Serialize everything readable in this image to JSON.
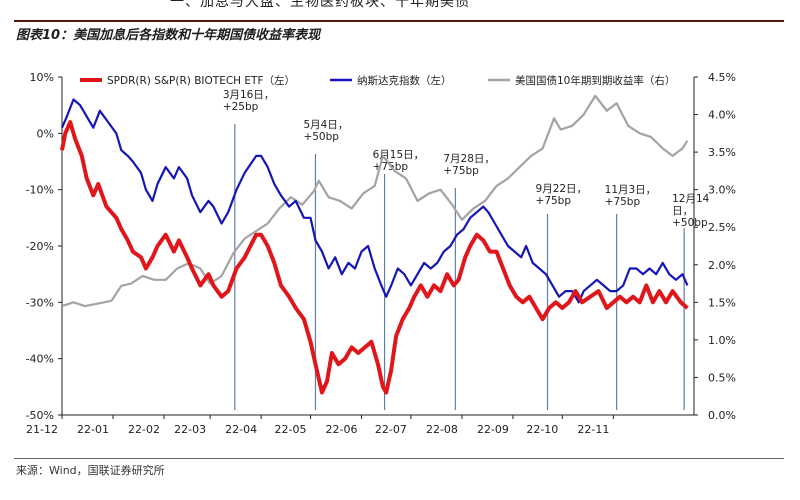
{
  "header": {
    "top_sliver_text": "一、加息与大盘、生物医药板块、十年期美债",
    "figure_title": "图表10：美国加息后各指数和十年期国债收益率表现"
  },
  "footer": {
    "source": "来源：Wind，国联证券研究所"
  },
  "colors": {
    "spdr": "#e0161b",
    "nasdaq": "#1515b8",
    "treasury": "#a3a3a3",
    "event_line": "#5f7fa6",
    "title_rule": "#5a1a12"
  },
  "chart_data": {
    "type": "line",
    "x_ticks": [
      "21-12",
      "22-01",
      "22-02",
      "22-03",
      "22-04",
      "22-05",
      "22-06",
      "22-07",
      "22-08",
      "22-09",
      "22-10",
      "22-11"
    ],
    "x_range": [
      "2021-12-01",
      "2022-12-20"
    ],
    "y_left": {
      "ticks": [
        "10%",
        "0%",
        "-10%",
        "-20%",
        "-30%",
        "-40%",
        "-50%"
      ],
      "range": [
        -50,
        10
      ],
      "unit": "%"
    },
    "y_right": {
      "ticks": [
        "4.5%",
        "4.0%",
        "3.5%",
        "3.0%",
        "2.5%",
        "2.0%",
        "1.5%",
        "1.0%",
        "0.5%",
        "0.0%"
      ],
      "range": [
        0,
        4.5
      ],
      "unit": "%"
    },
    "legend_position": "top",
    "series": [
      {
        "name": "SPDR(R) S&P(R) BIOTECH ETF（左）",
        "axis": "left",
        "color_key": "spdr",
        "points": [
          [
            "2021-12-01",
            -3
          ],
          [
            "2021-12-03",
            0
          ],
          [
            "2021-12-06",
            2
          ],
          [
            "2021-12-09",
            -1
          ],
          [
            "2021-12-13",
            -4
          ],
          [
            "2021-12-16",
            -8
          ],
          [
            "2021-12-20",
            -11
          ],
          [
            "2021-12-23",
            -9
          ],
          [
            "2021-12-28",
            -13
          ],
          [
            "2022-01-03",
            -15
          ],
          [
            "2022-01-06",
            -17
          ],
          [
            "2022-01-10",
            -19
          ],
          [
            "2022-01-13",
            -21
          ],
          [
            "2022-01-18",
            -22
          ],
          [
            "2022-01-21",
            -24
          ],
          [
            "2022-01-25",
            -22
          ],
          [
            "2022-01-28",
            -20
          ],
          [
            "2022-02-02",
            -18
          ],
          [
            "2022-02-07",
            -21
          ],
          [
            "2022-02-10",
            -19
          ],
          [
            "2022-02-15",
            -22
          ],
          [
            "2022-02-18",
            -24
          ],
          [
            "2022-02-23",
            -27
          ],
          [
            "2022-02-28",
            -25
          ],
          [
            "2022-03-03",
            -27
          ],
          [
            "2022-03-08",
            -29
          ],
          [
            "2022-03-12",
            -28
          ],
          [
            "2022-03-17",
            -24
          ],
          [
            "2022-03-22",
            -22
          ],
          [
            "2022-03-29",
            -18
          ],
          [
            "2022-04-01",
            -18
          ],
          [
            "2022-04-05",
            -20
          ],
          [
            "2022-04-09",
            -23
          ],
          [
            "2022-04-13",
            -27
          ],
          [
            "2022-04-18",
            -29
          ],
          [
            "2022-04-22",
            -31
          ],
          [
            "2022-04-27",
            -33
          ],
          [
            "2022-05-01",
            -37
          ],
          [
            "2022-05-04",
            -41
          ],
          [
            "2022-05-08",
            -46
          ],
          [
            "2022-05-11",
            -44
          ],
          [
            "2022-05-14",
            -39
          ],
          [
            "2022-05-18",
            -41
          ],
          [
            "2022-05-22",
            -40
          ],
          [
            "2022-05-26",
            -38
          ],
          [
            "2022-05-30",
            -39
          ],
          [
            "2022-06-03",
            -38
          ],
          [
            "2022-06-07",
            -37
          ],
          [
            "2022-06-11",
            -41
          ],
          [
            "2022-06-14",
            -45
          ],
          [
            "2022-06-16",
            -46
          ],
          [
            "2022-06-19",
            -42
          ],
          [
            "2022-06-22",
            -36
          ],
          [
            "2022-06-26",
            -33
          ],
          [
            "2022-06-30",
            -31
          ],
          [
            "2022-07-03",
            -29
          ],
          [
            "2022-07-07",
            -27
          ],
          [
            "2022-07-11",
            -29
          ],
          [
            "2022-07-15",
            -27
          ],
          [
            "2022-07-19",
            -28
          ],
          [
            "2022-07-23",
            -25
          ],
          [
            "2022-07-27",
            -27
          ],
          [
            "2022-07-30",
            -26
          ],
          [
            "2022-08-03",
            -22
          ],
          [
            "2022-08-06",
            -20
          ],
          [
            "2022-08-10",
            -18
          ],
          [
            "2022-08-14",
            -19
          ],
          [
            "2022-08-18",
            -21
          ],
          [
            "2022-08-22",
            -21
          ],
          [
            "2022-08-26",
            -24
          ],
          [
            "2022-08-30",
            -27
          ],
          [
            "2022-09-03",
            -29
          ],
          [
            "2022-09-07",
            -30
          ],
          [
            "2022-09-11",
            -29
          ],
          [
            "2022-09-15",
            -31
          ],
          [
            "2022-09-19",
            -33
          ],
          [
            "2022-09-23",
            -31
          ],
          [
            "2022-09-27",
            -30
          ],
          [
            "2022-10-01",
            -31
          ],
          [
            "2022-10-05",
            -30
          ],
          [
            "2022-10-09",
            -28
          ],
          [
            "2022-10-13",
            -30
          ],
          [
            "2022-10-18",
            -29
          ],
          [
            "2022-10-23",
            -28
          ],
          [
            "2022-10-28",
            -31
          ],
          [
            "2022-11-01",
            -30
          ],
          [
            "2022-11-05",
            -29
          ],
          [
            "2022-11-09",
            -30
          ],
          [
            "2022-11-13",
            -29
          ],
          [
            "2022-11-17",
            -30
          ],
          [
            "2022-11-21",
            -27
          ],
          [
            "2022-11-25",
            -30
          ],
          [
            "2022-11-29",
            -28
          ],
          [
            "2022-12-03",
            -30
          ],
          [
            "2022-12-07",
            -28
          ],
          [
            "2022-12-12",
            -30
          ],
          [
            "2022-12-16",
            -31
          ]
        ]
      },
      {
        "name": "纳斯达克指数（左）",
        "axis": "left",
        "color_key": "nasdaq",
        "points": [
          [
            "2021-12-01",
            1
          ],
          [
            "2021-12-04",
            3
          ],
          [
            "2021-12-08",
            6
          ],
          [
            "2021-12-12",
            5
          ],
          [
            "2021-12-16",
            3
          ],
          [
            "2021-12-20",
            1
          ],
          [
            "2021-12-24",
            4
          ],
          [
            "2021-12-29",
            2
          ],
          [
            "2022-01-03",
            0
          ],
          [
            "2022-01-06",
            -3
          ],
          [
            "2022-01-10",
            -4
          ],
          [
            "2022-01-13",
            -5
          ],
          [
            "2022-01-18",
            -7
          ],
          [
            "2022-01-21",
            -10
          ],
          [
            "2022-01-25",
            -12
          ],
          [
            "2022-01-28",
            -9
          ],
          [
            "2022-02-02",
            -6
          ],
          [
            "2022-02-07",
            -8
          ],
          [
            "2022-02-10",
            -6
          ],
          [
            "2022-02-15",
            -8
          ],
          [
            "2022-02-18",
            -11
          ],
          [
            "2022-02-23",
            -14
          ],
          [
            "2022-02-28",
            -12
          ],
          [
            "2022-03-03",
            -13
          ],
          [
            "2022-03-08",
            -16
          ],
          [
            "2022-03-12",
            -14
          ],
          [
            "2022-03-17",
            -10
          ],
          [
            "2022-03-22",
            -7
          ],
          [
            "2022-03-29",
            -4
          ],
          [
            "2022-04-01",
            -4
          ],
          [
            "2022-04-05",
            -6
          ],
          [
            "2022-04-09",
            -9
          ],
          [
            "2022-04-13",
            -11
          ],
          [
            "2022-04-18",
            -13
          ],
          [
            "2022-04-22",
            -12
          ],
          [
            "2022-04-27",
            -15
          ],
          [
            "2022-05-01",
            -15
          ],
          [
            "2022-05-04",
            -19
          ],
          [
            "2022-05-08",
            -21
          ],
          [
            "2022-05-12",
            -24
          ],
          [
            "2022-05-16",
            -22
          ],
          [
            "2022-05-20",
            -25
          ],
          [
            "2022-05-24",
            -23
          ],
          [
            "2022-05-28",
            -24
          ],
          [
            "2022-06-01",
            -21
          ],
          [
            "2022-06-05",
            -20
          ],
          [
            "2022-06-09",
            -24
          ],
          [
            "2022-06-13",
            -27
          ],
          [
            "2022-06-16",
            -29
          ],
          [
            "2022-06-19",
            -27
          ],
          [
            "2022-06-23",
            -24
          ],
          [
            "2022-06-27",
            -25
          ],
          [
            "2022-07-01",
            -27
          ],
          [
            "2022-07-05",
            -25
          ],
          [
            "2022-07-09",
            -23
          ],
          [
            "2022-07-13",
            -24
          ],
          [
            "2022-07-17",
            -23
          ],
          [
            "2022-07-21",
            -21
          ],
          [
            "2022-07-25",
            -20
          ],
          [
            "2022-07-29",
            -18
          ],
          [
            "2022-08-02",
            -17
          ],
          [
            "2022-08-06",
            -15
          ],
          [
            "2022-08-10",
            -14
          ],
          [
            "2022-08-14",
            -13
          ],
          [
            "2022-08-17",
            -14
          ],
          [
            "2022-08-21",
            -16
          ],
          [
            "2022-08-25",
            -18
          ],
          [
            "2022-08-29",
            -20
          ],
          [
            "2022-09-02",
            -21
          ],
          [
            "2022-09-06",
            -22
          ],
          [
            "2022-09-09",
            -20
          ],
          [
            "2022-09-13",
            -23
          ],
          [
            "2022-09-17",
            -24
          ],
          [
            "2022-09-21",
            -25
          ],
          [
            "2022-09-25",
            -27
          ],
          [
            "2022-09-29",
            -29
          ],
          [
            "2022-10-03",
            -28
          ],
          [
            "2022-10-07",
            -28
          ],
          [
            "2022-10-11",
            -30
          ],
          [
            "2022-10-14",
            -28
          ],
          [
            "2022-10-18",
            -27
          ],
          [
            "2022-10-22",
            -26
          ],
          [
            "2022-10-26",
            -27
          ],
          [
            "2022-10-30",
            -28
          ],
          [
            "2022-11-03",
            -28
          ],
          [
            "2022-11-07",
            -27
          ],
          [
            "2022-11-11",
            -24
          ],
          [
            "2022-11-15",
            -24
          ],
          [
            "2022-11-19",
            -25
          ],
          [
            "2022-11-23",
            -24
          ],
          [
            "2022-11-27",
            -25
          ],
          [
            "2022-12-01",
            -23
          ],
          [
            "2022-12-05",
            -25
          ],
          [
            "2022-12-09",
            -26
          ],
          [
            "2022-12-13",
            -25
          ],
          [
            "2022-12-16",
            -27
          ]
        ]
      },
      {
        "name": "美国国债10年期到期收益率（右）",
        "axis": "right",
        "color_key": "treasury",
        "points": [
          [
            "2021-12-01",
            1.45
          ],
          [
            "2021-12-08",
            1.5
          ],
          [
            "2021-12-15",
            1.45
          ],
          [
            "2021-12-22",
            1.48
          ],
          [
            "2021-12-31",
            1.52
          ],
          [
            "2022-01-06",
            1.72
          ],
          [
            "2022-01-12",
            1.75
          ],
          [
            "2022-01-19",
            1.85
          ],
          [
            "2022-01-26",
            1.8
          ],
          [
            "2022-02-02",
            1.8
          ],
          [
            "2022-02-09",
            1.95
          ],
          [
            "2022-02-16",
            2.02
          ],
          [
            "2022-02-23",
            1.95
          ],
          [
            "2022-03-01",
            1.75
          ],
          [
            "2022-03-08",
            1.85
          ],
          [
            "2022-03-15",
            2.15
          ],
          [
            "2022-03-22",
            2.35
          ],
          [
            "2022-03-29",
            2.45
          ],
          [
            "2022-04-05",
            2.55
          ],
          [
            "2022-04-12",
            2.75
          ],
          [
            "2022-04-19",
            2.9
          ],
          [
            "2022-04-26",
            2.8
          ],
          [
            "2022-05-03",
            2.98
          ],
          [
            "2022-05-06",
            3.12
          ],
          [
            "2022-05-12",
            2.9
          ],
          [
            "2022-05-19",
            2.85
          ],
          [
            "2022-05-26",
            2.75
          ],
          [
            "2022-06-02",
            2.95
          ],
          [
            "2022-06-09",
            3.05
          ],
          [
            "2022-06-14",
            3.45
          ],
          [
            "2022-06-21",
            3.25
          ],
          [
            "2022-06-28",
            3.15
          ],
          [
            "2022-07-05",
            2.85
          ],
          [
            "2022-07-12",
            2.95
          ],
          [
            "2022-07-19",
            3.0
          ],
          [
            "2022-07-26",
            2.8
          ],
          [
            "2022-08-01",
            2.6
          ],
          [
            "2022-08-08",
            2.75
          ],
          [
            "2022-08-15",
            2.85
          ],
          [
            "2022-08-22",
            3.05
          ],
          [
            "2022-08-29",
            3.15
          ],
          [
            "2022-09-05",
            3.3
          ],
          [
            "2022-09-12",
            3.45
          ],
          [
            "2022-09-19",
            3.55
          ],
          [
            "2022-09-26",
            3.95
          ],
          [
            "2022-09-30",
            3.8
          ],
          [
            "2022-10-07",
            3.85
          ],
          [
            "2022-10-14",
            4.0
          ],
          [
            "2022-10-21",
            4.25
          ],
          [
            "2022-10-28",
            4.05
          ],
          [
            "2022-11-03",
            4.15
          ],
          [
            "2022-11-10",
            3.85
          ],
          [
            "2022-11-17",
            3.75
          ],
          [
            "2022-11-24",
            3.7
          ],
          [
            "2022-12-01",
            3.55
          ],
          [
            "2022-12-07",
            3.45
          ],
          [
            "2022-12-13",
            3.55
          ],
          [
            "2022-12-16",
            3.65
          ]
        ]
      }
    ],
    "annotations": [
      {
        "date": "2022-03-16",
        "line1": "3月16日，",
        "line2": "+25bp"
      },
      {
        "date": "2022-05-04",
        "line1": "5月4日，",
        "line2": "+50bp"
      },
      {
        "date": "2022-06-15",
        "line1": "6月15日，",
        "line2": "+75bp"
      },
      {
        "date": "2022-07-28",
        "line1": "7月28日，",
        "line2": "+75bp"
      },
      {
        "date": "2022-09-22",
        "line1": "9月22日，",
        "line2": "+75bp"
      },
      {
        "date": "2022-11-03",
        "line1": "11月3日，",
        "line2": "+75bp"
      },
      {
        "date": "2022-12-14",
        "line1": "12月14",
        "line2": "日，",
        "line3": "+50bp"
      }
    ]
  }
}
